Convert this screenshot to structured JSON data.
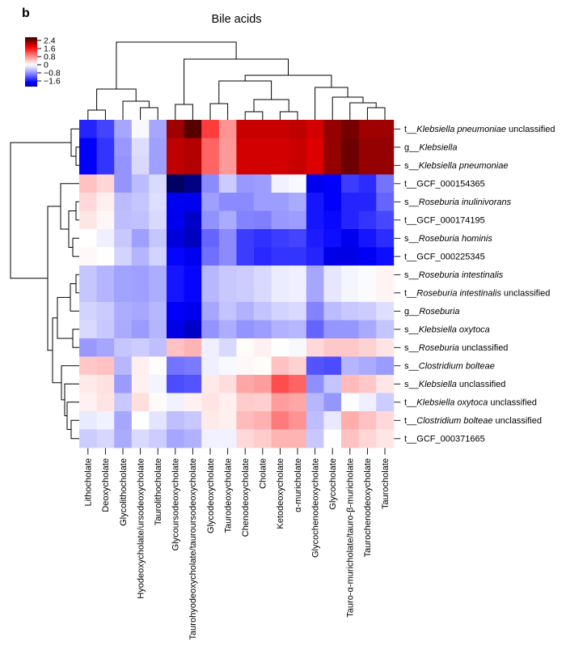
{
  "panel_label": "b",
  "title": "Bile acids",
  "legend": {
    "ticks": [
      "2.4",
      "1.6",
      "0.8",
      "0",
      "−0.8",
      "−1.6"
    ],
    "tick_values": [
      2.4,
      1.6,
      0.8,
      0,
      -0.8,
      -1.6
    ],
    "bar_top_value": 2.72,
    "bar_bottom_value": -2.16
  },
  "chart_data": {
    "type": "heatmap",
    "title": "Bile acids",
    "value_range": [
      -2.6,
      2.6
    ],
    "colormap_stops": [
      {
        "v": -2.6,
        "rgb": [
          0,
          0,
          80
        ]
      },
      {
        "v": -1.73,
        "rgb": [
          0,
          0,
          255
        ]
      },
      {
        "v": -0.87,
        "rgb": [
          136,
          136,
          255
        ]
      },
      {
        "v": 0,
        "rgb": [
          255,
          255,
          255
        ]
      },
      {
        "v": 0.87,
        "rgb": [
          255,
          136,
          136
        ]
      },
      {
        "v": 1.73,
        "rgb": [
          255,
          0,
          0
        ]
      },
      {
        "v": 2.6,
        "rgb": [
          77,
          0,
          0
        ]
      }
    ],
    "columns": [
      "Lithocholate",
      "Deoxycholate",
      "Glycolithocholate",
      "Hyodeoxycholate/ursodeoxycholate",
      "Taurolithocholate",
      "Glycoursodeoxycholate",
      "Taurohyodeoxycholate/tauroursodeoxycholate",
      "Glycodeoxycholate",
      "Taurodeoxycholate",
      "Chenodeoxycholate",
      "Cholate",
      "Ketodeoxycholate",
      "α-muricholate",
      "Glycochenodeoxycholate",
      "Glycocholate",
      "Tauro-α-muricholate/tauro-β-muricholate",
      "Taurochenodeoxycholate",
      "Taurocholate"
    ],
    "rows": [
      {
        "segments": [
          {
            "t": "t__",
            "i": false
          },
          {
            "t": "Klebsiella pneumoniae",
            "i": true
          },
          {
            "t": " unclassified",
            "i": false
          }
        ]
      },
      {
        "segments": [
          {
            "t": "g__",
            "i": false
          },
          {
            "t": "Klebsiella",
            "i": true
          }
        ]
      },
      {
        "segments": [
          {
            "t": "s__",
            "i": false
          },
          {
            "t": "Klebsiella pneumoniae",
            "i": true
          }
        ]
      },
      {
        "segments": [
          {
            "t": "t__GCF_000154365",
            "i": false
          }
        ]
      },
      {
        "segments": [
          {
            "t": "s__",
            "i": false
          },
          {
            "t": "Roseburia inulinivorans",
            "i": true
          }
        ]
      },
      {
        "segments": [
          {
            "t": "t__GCF_000174195",
            "i": false
          }
        ]
      },
      {
        "segments": [
          {
            "t": "s__",
            "i": false
          },
          {
            "t": "Roseburia hominis",
            "i": true
          }
        ]
      },
      {
        "segments": [
          {
            "t": "t__GCF_000225345",
            "i": false
          }
        ]
      },
      {
        "segments": [
          {
            "t": "s__",
            "i": false
          },
          {
            "t": "Roseburia intestinalis",
            "i": true
          }
        ]
      },
      {
        "segments": [
          {
            "t": "t__",
            "i": false
          },
          {
            "t": "Roseburia intestinalis",
            "i": true
          },
          {
            "t": " unclassified",
            "i": false
          }
        ]
      },
      {
        "segments": [
          {
            "t": "g__",
            "i": false
          },
          {
            "t": "Roseburia",
            "i": true
          }
        ]
      },
      {
        "segments": [
          {
            "t": "s__",
            "i": false
          },
          {
            "t": "Klebsiella oxytoca",
            "i": true
          }
        ]
      },
      {
        "segments": [
          {
            "t": "s__",
            "i": false
          },
          {
            "t": "Roseburia",
            "i": true
          },
          {
            "t": " unclassified",
            "i": false
          }
        ]
      },
      {
        "segments": [
          {
            "t": "s__",
            "i": false
          },
          {
            "t": "Clostridium bolteae",
            "i": true
          }
        ]
      },
      {
        "segments": [
          {
            "t": "s__",
            "i": false
          },
          {
            "t": "Klebsiella",
            "i": true
          },
          {
            "t": " unclassified",
            "i": false
          }
        ]
      },
      {
        "segments": [
          {
            "t": "t__",
            "i": false
          },
          {
            "t": "Klebsiella oxytoca",
            "i": true
          },
          {
            "t": " unclassified",
            "i": false
          }
        ]
      },
      {
        "segments": [
          {
            "t": "t__",
            "i": false
          },
          {
            "t": "Clostridium bolteae",
            "i": true
          },
          {
            "t": " unclassified",
            "i": false
          }
        ]
      },
      {
        "segments": [
          {
            "t": "t__GCF_000371665",
            "i": false
          }
        ]
      }
    ],
    "values": [
      [
        -1.5,
        -1.3,
        -0.65,
        -0.05,
        -0.65,
        2.2,
        2.55,
        1.35,
        0.8,
        2.0,
        2.0,
        2.0,
        2.05,
        1.95,
        2.25,
        2.4,
        2.2,
        2.2
      ],
      [
        -1.75,
        -1.4,
        -0.75,
        -0.25,
        -0.7,
        2.05,
        2.1,
        1.1,
        0.75,
        1.95,
        1.95,
        1.95,
        2.0,
        1.9,
        2.25,
        2.45,
        2.25,
        2.25
      ],
      [
        -1.75,
        -1.4,
        -0.78,
        -0.28,
        -0.7,
        2.05,
        2.1,
        1.1,
        0.75,
        1.95,
        1.95,
        1.95,
        2.0,
        1.9,
        2.25,
        2.45,
        2.25,
        2.25
      ],
      [
        0.45,
        0.3,
        -0.78,
        -0.5,
        -0.27,
        -2.5,
        -2.35,
        -0.85,
        -0.38,
        -0.75,
        -0.72,
        -0.1,
        -0.05,
        -1.8,
        -1.75,
        -1.35,
        -1.45,
        -1.0
      ],
      [
        0.28,
        0.12,
        -0.5,
        -0.42,
        -0.24,
        -1.8,
        -1.8,
        -0.7,
        -0.85,
        -0.85,
        -0.72,
        -0.72,
        -0.62,
        -1.6,
        -1.75,
        -1.5,
        -1.5,
        -1.1
      ],
      [
        0.18,
        0.06,
        -0.48,
        -0.45,
        -0.28,
        -1.8,
        -2.0,
        -0.8,
        -0.62,
        -0.9,
        -0.92,
        -0.75,
        -0.72,
        -1.6,
        -1.68,
        -1.5,
        -1.4,
        -1.28
      ],
      [
        0.0,
        -0.12,
        -0.4,
        -0.7,
        -0.42,
        -1.9,
        -2.05,
        -1.1,
        -0.85,
        -1.35,
        -1.42,
        -1.35,
        -1.3,
        -1.55,
        -1.65,
        -1.8,
        -1.6,
        -1.45
      ],
      [
        0.05,
        0.0,
        -0.32,
        -0.55,
        -0.32,
        -1.7,
        -1.8,
        -1.02,
        -0.85,
        -1.35,
        -1.48,
        -1.4,
        -1.4,
        -1.5,
        -1.85,
        -1.85,
        -1.78,
        -1.65
      ],
      [
        -0.42,
        -0.55,
        -0.68,
        -0.7,
        -0.6,
        -1.6,
        -1.7,
        -0.53,
        -0.4,
        -0.37,
        -0.28,
        -0.14,
        -0.12,
        -0.65,
        -0.18,
        -0.07,
        -0.03,
        0.08
      ],
      [
        -0.42,
        -0.55,
        -0.68,
        -0.7,
        -0.6,
        -1.6,
        -1.7,
        -0.53,
        -0.4,
        -0.37,
        -0.28,
        -0.14,
        -0.12,
        -0.65,
        -0.18,
        -0.07,
        -0.03,
        0.08
      ],
      [
        -0.32,
        -0.38,
        -0.6,
        -0.64,
        -0.53,
        -1.75,
        -1.8,
        -0.65,
        -0.44,
        -0.57,
        -0.44,
        -0.32,
        -0.28,
        -0.9,
        -0.5,
        -0.4,
        -0.37,
        -0.24
      ],
      [
        -0.28,
        -0.4,
        -0.62,
        -0.74,
        -0.55,
        -1.85,
        -2.0,
        -0.78,
        -0.6,
        -0.78,
        -0.72,
        -0.57,
        -0.53,
        -1.1,
        -0.77,
        -0.77,
        -0.63,
        -0.43
      ],
      [
        -0.75,
        -0.65,
        -0.42,
        -0.37,
        -0.47,
        0.45,
        0.55,
        -0.12,
        -0.28,
        0.02,
        0.1,
        0.0,
        -0.05,
        0.28,
        0.4,
        0.4,
        0.33,
        0.2
      ],
      [
        0.4,
        0.45,
        -0.53,
        0.12,
        0.02,
        -1.0,
        -0.95,
        -0.12,
        -0.05,
        0.05,
        0.02,
        0.45,
        0.33,
        -1.2,
        -1.25,
        -0.55,
        -0.62,
        -0.74
      ],
      [
        0.15,
        0.22,
        -0.73,
        0.1,
        -0.08,
        -1.25,
        -1.2,
        0.15,
        0.25,
        0.65,
        0.72,
        1.25,
        1.1,
        -0.82,
        -0.43,
        0.5,
        0.4,
        0.18
      ],
      [
        0.1,
        0.2,
        -0.4,
        0.24,
        0.03,
        -0.1,
        0.1,
        0.2,
        0.12,
        0.38,
        0.35,
        0.72,
        0.65,
        -0.53,
        -0.77,
        0.01,
        -0.12,
        -0.37
      ],
      [
        -0.16,
        -0.1,
        -0.65,
        0.0,
        -0.2,
        -0.47,
        -0.4,
        0.15,
        0.12,
        0.5,
        0.58,
        0.95,
        0.8,
        -0.48,
        -0.17,
        0.6,
        0.45,
        0.28
      ],
      [
        -0.37,
        -0.3,
        -0.62,
        -0.27,
        -0.37,
        -0.65,
        -0.57,
        -0.1,
        -0.1,
        0.28,
        0.37,
        0.55,
        0.55,
        -0.4,
        0.01,
        0.45,
        0.3,
        0.18
      ]
    ],
    "col_dendrogram": [
      [
        "L0",
        "L1",
        12
      ],
      [
        "L3",
        "L4",
        15
      ],
      [
        "L2",
        "N1",
        23
      ],
      [
        "N0",
        "N2",
        38
      ],
      [
        "L5",
        "L6",
        19
      ],
      [
        "L7",
        "L8",
        20
      ],
      [
        "L9",
        "L10",
        10
      ],
      [
        "L11",
        "L12",
        10
      ],
      [
        "N6",
        "N7",
        25
      ],
      [
        "N5",
        "N8",
        48
      ],
      [
        "L16",
        "L17",
        15
      ],
      [
        "L15",
        "N10",
        21
      ],
      [
        "L14",
        "N11",
        28
      ],
      [
        "L13",
        "N12",
        40
      ],
      [
        "N9",
        "N13",
        55
      ],
      [
        "N4",
        "N14",
        75
      ],
      [
        "N3",
        "N15",
        96
      ]
    ],
    "row_dendrogram": [
      [
        "L1",
        "L2",
        4
      ],
      [
        "L0",
        "N0",
        10
      ],
      [
        "L4",
        "L5",
        4
      ],
      [
        "L6",
        "L7",
        8
      ],
      [
        "N2",
        "N3",
        13
      ],
      [
        "L3",
        "N4",
        23
      ],
      [
        "L8",
        "L9",
        4
      ],
      [
        "N6",
        "L10",
        11
      ],
      [
        "L11",
        "L12",
        8
      ],
      [
        "N7",
        "N8",
        27
      ],
      [
        "L16",
        "L17",
        10
      ],
      [
        "L15",
        "N10",
        15
      ],
      [
        "L14",
        "N11",
        18
      ],
      [
        "L13",
        "N12",
        22
      ],
      [
        "N9",
        "N13",
        33
      ],
      [
        "N5",
        "N14",
        39
      ],
      [
        "N1",
        "N15",
        85
      ]
    ]
  }
}
